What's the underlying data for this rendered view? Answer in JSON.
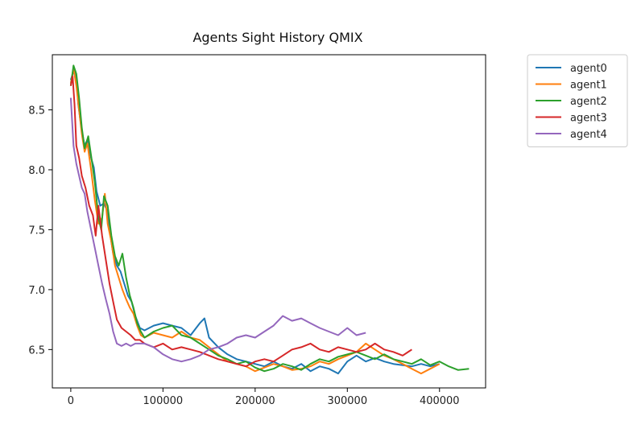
{
  "chart_data": {
    "type": "line",
    "title": "Agents Sight History QMIX",
    "xlabel": "",
    "ylabel": "",
    "xlim": [
      -20000,
      450000
    ],
    "ylim": [
      6.18,
      8.96
    ],
    "xticks": [
      0,
      100000,
      200000,
      300000,
      400000
    ],
    "yticks": [
      6.5,
      7.0,
      7.5,
      8.0,
      8.5
    ],
    "xtick_labels": [
      "0",
      "100000",
      "200000",
      "300000",
      "400000"
    ],
    "ytick_labels": [
      "6.5",
      "7.0",
      "7.5",
      "8.0",
      "8.5"
    ],
    "grid": false,
    "legend_position": "outside-top-right",
    "series": [
      {
        "name": "agent0",
        "color": "#1f77b4",
        "x": [
          0,
          3000,
          6000,
          8000,
          12000,
          15000,
          18000,
          22000,
          25000,
          28000,
          32000,
          36000,
          40000,
          43000,
          46000,
          50000,
          54000,
          58000,
          62000,
          66000,
          70000,
          75000,
          80000,
          90000,
          100000,
          110000,
          120000,
          130000,
          140000,
          145000,
          150000,
          160000,
          170000,
          180000,
          190000,
          200000,
          210000,
          220000,
          230000,
          240000,
          250000,
          260000,
          270000,
          280000,
          290000,
          300000,
          310000,
          320000,
          330000,
          340000,
          350000,
          360000,
          370000,
          380000,
          390000,
          400000
        ],
        "y": [
          8.75,
          8.82,
          8.78,
          8.55,
          8.32,
          8.2,
          8.25,
          8.1,
          8.02,
          7.82,
          7.7,
          7.72,
          7.65,
          7.45,
          7.3,
          7.2,
          7.15,
          7.05,
          6.95,
          6.9,
          6.78,
          6.68,
          6.66,
          6.7,
          6.72,
          6.7,
          6.68,
          6.62,
          6.72,
          6.76,
          6.6,
          6.52,
          6.46,
          6.42,
          6.4,
          6.38,
          6.36,
          6.4,
          6.36,
          6.34,
          6.38,
          6.32,
          6.36,
          6.34,
          6.3,
          6.4,
          6.45,
          6.4,
          6.43,
          6.4,
          6.38,
          6.37,
          6.36,
          6.38,
          6.36,
          6.38
        ]
      },
      {
        "name": "agent1",
        "color": "#ff7f0e",
        "x": [
          0,
          3000,
          6000,
          9000,
          12000,
          15000,
          18000,
          22000,
          26000,
          30000,
          34000,
          37000,
          40000,
          44000,
          48000,
          52000,
          56000,
          60000,
          64000,
          68000,
          72000,
          76000,
          80000,
          90000,
          100000,
          110000,
          120000,
          130000,
          140000,
          150000,
          160000,
          170000,
          180000,
          190000,
          200000,
          210000,
          220000,
          230000,
          240000,
          250000,
          260000,
          270000,
          280000,
          290000,
          300000,
          310000,
          320000,
          330000,
          340000,
          350000,
          360000,
          370000,
          380000,
          390000,
          400000
        ],
        "y": [
          8.72,
          8.85,
          8.7,
          8.5,
          8.3,
          8.15,
          8.22,
          8.0,
          7.75,
          7.55,
          7.6,
          7.8,
          7.55,
          7.4,
          7.2,
          7.1,
          7.0,
          6.92,
          6.85,
          6.8,
          6.7,
          6.62,
          6.6,
          6.64,
          6.62,
          6.6,
          6.65,
          6.6,
          6.58,
          6.52,
          6.46,
          6.4,
          6.38,
          6.36,
          6.32,
          6.35,
          6.38,
          6.36,
          6.33,
          6.34,
          6.36,
          6.4,
          6.38,
          6.42,
          6.45,
          6.48,
          6.55,
          6.5,
          6.45,
          6.42,
          6.38,
          6.34,
          6.3,
          6.34,
          6.38
        ]
      },
      {
        "name": "agent2",
        "color": "#2ca02c",
        "x": [
          0,
          3000,
          6000,
          9000,
          12000,
          15000,
          19000,
          22000,
          26000,
          30000,
          33000,
          36000,
          40000,
          44000,
          48000,
          52000,
          56000,
          60000,
          64000,
          68000,
          72000,
          76000,
          80000,
          90000,
          100000,
          110000,
          120000,
          130000,
          140000,
          150000,
          160000,
          170000,
          180000,
          190000,
          200000,
          210000,
          220000,
          230000,
          240000,
          250000,
          260000,
          270000,
          280000,
          290000,
          300000,
          310000,
          320000,
          330000,
          340000,
          350000,
          360000,
          370000,
          380000,
          390000,
          400000,
          410000,
          420000,
          432000
        ],
        "y": [
          8.7,
          8.87,
          8.8,
          8.6,
          8.35,
          8.18,
          8.28,
          8.12,
          7.9,
          7.6,
          7.5,
          7.78,
          7.7,
          7.45,
          7.28,
          7.2,
          7.3,
          7.1,
          6.95,
          6.85,
          6.72,
          6.65,
          6.6,
          6.65,
          6.68,
          6.7,
          6.62,
          6.6,
          6.55,
          6.5,
          6.45,
          6.42,
          6.38,
          6.4,
          6.35,
          6.32,
          6.34,
          6.38,
          6.36,
          6.33,
          6.38,
          6.42,
          6.4,
          6.44,
          6.46,
          6.48,
          6.45,
          6.42,
          6.46,
          6.42,
          6.4,
          6.38,
          6.42,
          6.37,
          6.4,
          6.36,
          6.33,
          6.34
        ]
      },
      {
        "name": "agent3",
        "color": "#d62728",
        "x": [
          0,
          2000,
          4000,
          6000,
          9000,
          12000,
          16000,
          20000,
          24000,
          27000,
          30000,
          34000,
          38000,
          42000,
          46000,
          50000,
          55000,
          60000,
          65000,
          70000,
          75000,
          80000,
          90000,
          100000,
          110000,
          120000,
          130000,
          140000,
          150000,
          160000,
          170000,
          180000,
          190000,
          200000,
          210000,
          220000,
          230000,
          240000,
          250000,
          260000,
          270000,
          280000,
          290000,
          300000,
          310000,
          320000,
          330000,
          340000,
          350000,
          360000,
          370000
        ],
        "y": [
          8.7,
          8.78,
          8.55,
          8.2,
          8.1,
          7.95,
          7.85,
          7.7,
          7.62,
          7.45,
          7.7,
          7.45,
          7.25,
          7.05,
          6.9,
          6.75,
          6.68,
          6.65,
          6.62,
          6.58,
          6.58,
          6.55,
          6.52,
          6.55,
          6.5,
          6.52,
          6.5,
          6.48,
          6.45,
          6.42,
          6.4,
          6.38,
          6.36,
          6.4,
          6.42,
          6.4,
          6.45,
          6.5,
          6.52,
          6.55,
          6.5,
          6.48,
          6.52,
          6.5,
          6.48,
          6.5,
          6.55,
          6.5,
          6.48,
          6.45,
          6.5
        ]
      },
      {
        "name": "agent4",
        "color": "#9467bd",
        "x": [
          0,
          3000,
          6000,
          9000,
          12000,
          15000,
          18000,
          22000,
          26000,
          30000,
          34000,
          38000,
          42000,
          46000,
          50000,
          55000,
          60000,
          65000,
          70000,
          75000,
          80000,
          90000,
          100000,
          110000,
          120000,
          130000,
          140000,
          150000,
          160000,
          170000,
          180000,
          190000,
          200000,
          210000,
          220000,
          230000,
          240000,
          250000,
          260000,
          270000,
          280000,
          290000,
          300000,
          310000,
          320000
        ],
        "y": [
          8.6,
          8.2,
          8.05,
          7.95,
          7.85,
          7.8,
          7.65,
          7.5,
          7.35,
          7.2,
          7.05,
          6.92,
          6.8,
          6.65,
          6.55,
          6.53,
          6.55,
          6.53,
          6.55,
          6.55,
          6.55,
          6.52,
          6.46,
          6.42,
          6.4,
          6.42,
          6.45,
          6.5,
          6.52,
          6.55,
          6.6,
          6.62,
          6.6,
          6.65,
          6.7,
          6.78,
          6.74,
          6.76,
          6.72,
          6.68,
          6.65,
          6.62,
          6.68,
          6.62,
          6.64
        ]
      }
    ]
  }
}
